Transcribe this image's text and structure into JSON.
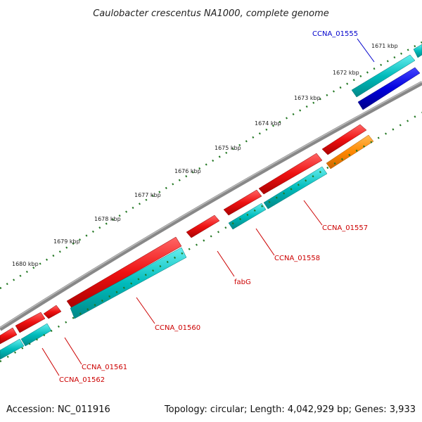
{
  "title": "Caulobacter crescentus NA1000, complete genome",
  "accession": "Accession: NC_011916",
  "summary": "Topology: circular; Length: 4,042,929 bp; Genes: 3,933",
  "ruler_labels": [
    "1671 kbp",
    "1672 kbp",
    "1673 kbp",
    "1674 kbp",
    "1675 kbp",
    "1676 kbp",
    "1677 kbp",
    "1678 kbp",
    "1679 kbp",
    "1680 kbp"
  ],
  "genes": [
    {
      "name": "CCNA_01555",
      "color": "#0000cc"
    },
    {
      "name": "CCNA_01557",
      "color": "#dd0000"
    },
    {
      "name": "CCNA_01558",
      "color": "#dd0000"
    },
    {
      "name": "fabG",
      "color": "#dd0000"
    },
    {
      "name": "CCNA_01560",
      "color": "#dd0000"
    },
    {
      "name": "CCNA_01561",
      "color": "#dd0000"
    },
    {
      "name": "CCNA_01562",
      "color": "#dd0000"
    }
  ],
  "colors": {
    "backbone": "#888888",
    "cds": "#ee1111",
    "gene": "#00bbbb",
    "trna": "#ff8800",
    "highlight": "#0000dd",
    "ticks": "#227722"
  }
}
